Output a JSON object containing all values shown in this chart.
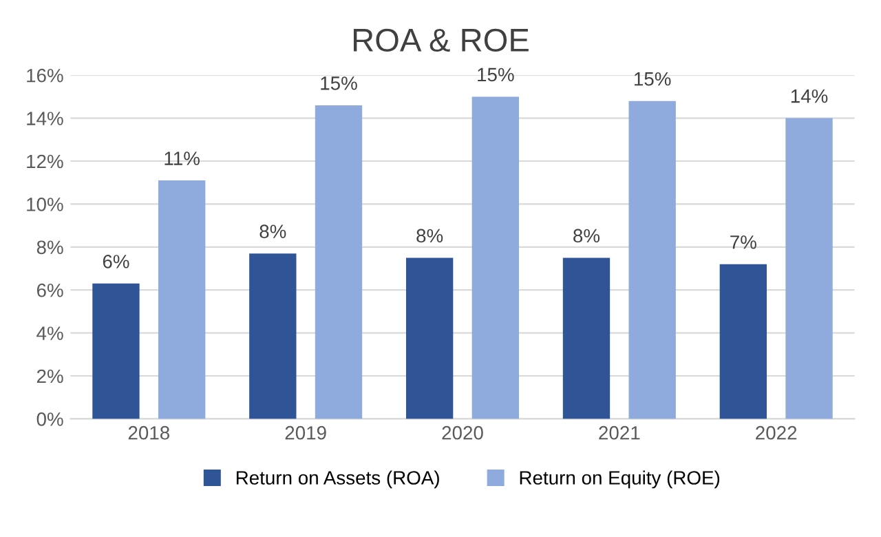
{
  "chart_data": {
    "type": "bar",
    "title": "ROA & ROE",
    "categories": [
      "2018",
      "2019",
      "2020",
      "2021",
      "2022"
    ],
    "series": [
      {
        "name": "Return on Assets (ROA)",
        "color": "#2f5597",
        "values": [
          6.3,
          7.7,
          7.5,
          7.5,
          7.2
        ],
        "value_labels": [
          "6%",
          "8%",
          "8%",
          "8%",
          "7%"
        ]
      },
      {
        "name": "Return on Equity (ROE)",
        "color": "#8faadc",
        "values": [
          11.1,
          14.6,
          15.0,
          14.8,
          14.0
        ],
        "value_labels": [
          "11%",
          "15%",
          "15%",
          "15%",
          "14%"
        ]
      }
    ],
    "ylim": [
      0,
      16
    ],
    "yticks": [
      {
        "value": 0,
        "label": "0%"
      },
      {
        "value": 2,
        "label": "2%"
      },
      {
        "value": 4,
        "label": "4%"
      },
      {
        "value": 6,
        "label": "6%"
      },
      {
        "value": 8,
        "label": "8%"
      },
      {
        "value": 10,
        "label": "10%"
      },
      {
        "value": 12,
        "label": "12%"
      },
      {
        "value": 14,
        "label": "14%"
      },
      {
        "value": 16,
        "label": "16%"
      }
    ],
    "grid": "y",
    "legend": "bottom"
  }
}
